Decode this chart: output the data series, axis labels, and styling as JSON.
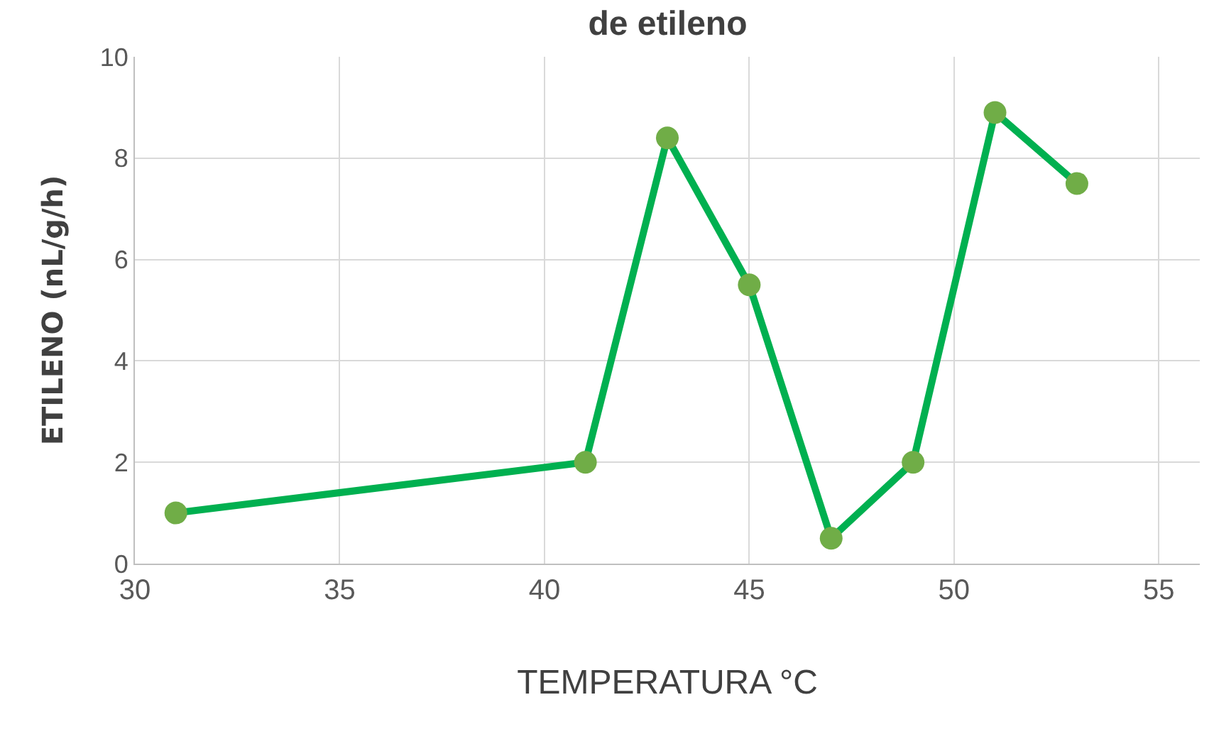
{
  "chart_data": {
    "type": "line",
    "title": "de etileno",
    "xlabel": "TEMPERATURA °C",
    "ylabel": "ETILENO (nL/g/h)",
    "x": [
      31,
      41,
      43,
      45,
      47,
      49,
      51,
      53
    ],
    "series": [
      {
        "color": "#00b050",
        "colors": [
          "#70ad47",
          "#70ad47",
          "#70ad47",
          "#70ad47",
          "#70ad47",
          "#70ad47",
          "#70ad47",
          "#70ad47"
        ],
        "values": [
          1,
          2,
          8.4,
          5.5,
          0.5,
          2,
          8.9,
          7.5
        ]
      }
    ],
    "marker": "circle",
    "line_style": "solid",
    "xlim": [
      30,
      56
    ],
    "xticks": [
      30,
      35,
      40,
      45,
      50,
      55
    ],
    "ylim": [
      0,
      10
    ],
    "yticks": [
      0,
      2,
      4,
      6,
      8,
      10
    ],
    "grid": true,
    "legend": false
  }
}
